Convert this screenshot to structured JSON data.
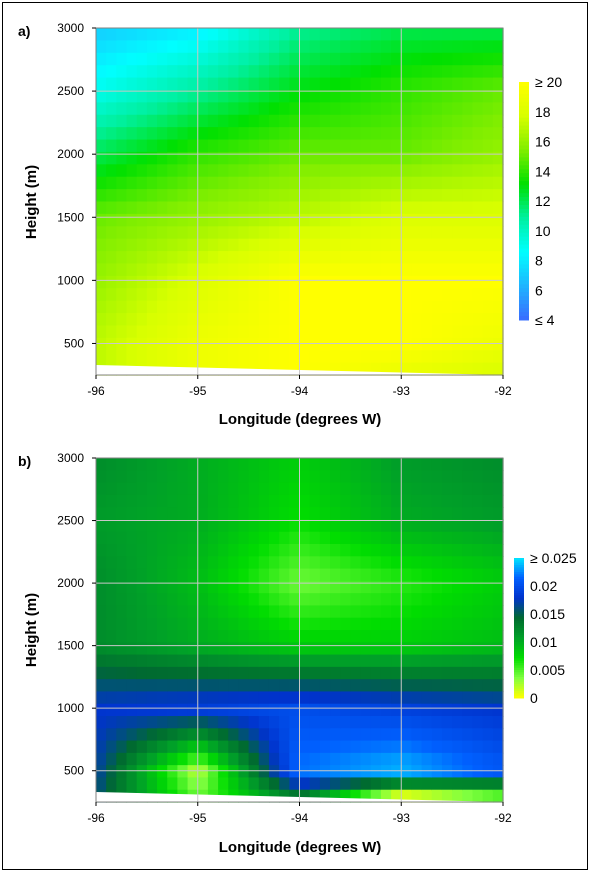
{
  "chart_data": [
    {
      "type": "heatmap",
      "panel_label": "a)",
      "xlabel": "Longitude (degrees W)",
      "ylabel": "Height (m)",
      "x_ticks": [
        "-96",
        "-95",
        "-94",
        "-93",
        "-92"
      ],
      "y_ticks": [
        "3000",
        "2500",
        "2000",
        "1500",
        "1000",
        "500"
      ],
      "xlim": [
        -96,
        -92
      ],
      "ylim": [
        250,
        3000
      ],
      "grid": true,
      "colorbar": {
        "labels": [
          "≥ 20",
          "18",
          "16",
          "14",
          "12",
          "10",
          "8",
          "6",
          "≤ 4"
        ],
        "min": 4,
        "max": 20,
        "colors": [
          "#3a6cff",
          "#1fb4ff",
          "#00ffff",
          "#00f0a0",
          "#00e000",
          "#80ee00",
          "#d8ff00",
          "#ffff00"
        ]
      },
      "x": [
        -96,
        -95,
        -94,
        -93,
        -92
      ],
      "y": [
        300,
        500,
        1000,
        1500,
        2000,
        2500,
        3000
      ],
      "z": [
        [
          17,
          19,
          20,
          19,
          18
        ],
        [
          17,
          19,
          20,
          20,
          19
        ],
        [
          16,
          18,
          20,
          20,
          20
        ],
        [
          15,
          16,
          17,
          18,
          18
        ],
        [
          12,
          14,
          15,
          15,
          16
        ],
        [
          9,
          11,
          13,
          14,
          15
        ],
        [
          7,
          8,
          11,
          12,
          12
        ]
      ]
    },
    {
      "type": "heatmap",
      "panel_label": "b)",
      "xlabel": "Longitude (degrees W)",
      "ylabel": "Height (m)",
      "x_ticks": [
        "-96",
        "-95",
        "-94",
        "-93",
        "-92"
      ],
      "y_ticks": [
        "3000",
        "2500",
        "2000",
        "1500",
        "1000",
        "500"
      ],
      "xlim": [
        -96,
        -92
      ],
      "ylim": [
        250,
        3000
      ],
      "grid": true,
      "colorbar": {
        "labels": [
          "≥ 0.025",
          "0.02",
          "0.015",
          "0.01",
          "0.005",
          "0"
        ],
        "min": 0,
        "max": 0.025,
        "colors": [
          "#ffff00",
          "#80ff40",
          "#00dd00",
          "#00a028",
          "#006a30",
          "#0033cc",
          "#0060ff",
          "#00e8ff"
        ]
      },
      "x": [
        -96,
        -95,
        -94,
        -93,
        -92
      ],
      "y": [
        300,
        500,
        1000,
        1500,
        2000,
        2500,
        3000
      ],
      "z": [
        [
          0.016,
          0.004,
          0.014,
          0.001,
          0.005
        ],
        [
          0.017,
          0.002,
          0.022,
          0.024,
          0.021
        ],
        [
          0.018,
          0.019,
          0.02,
          0.019,
          0.018
        ],
        [
          0.012,
          0.01,
          0.008,
          0.008,
          0.009
        ],
        [
          0.012,
          0.009,
          0.004,
          0.006,
          0.008
        ],
        [
          0.011,
          0.01,
          0.007,
          0.01,
          0.011
        ],
        [
          0.012,
          0.01,
          0.008,
          0.011,
          0.012
        ]
      ]
    }
  ]
}
